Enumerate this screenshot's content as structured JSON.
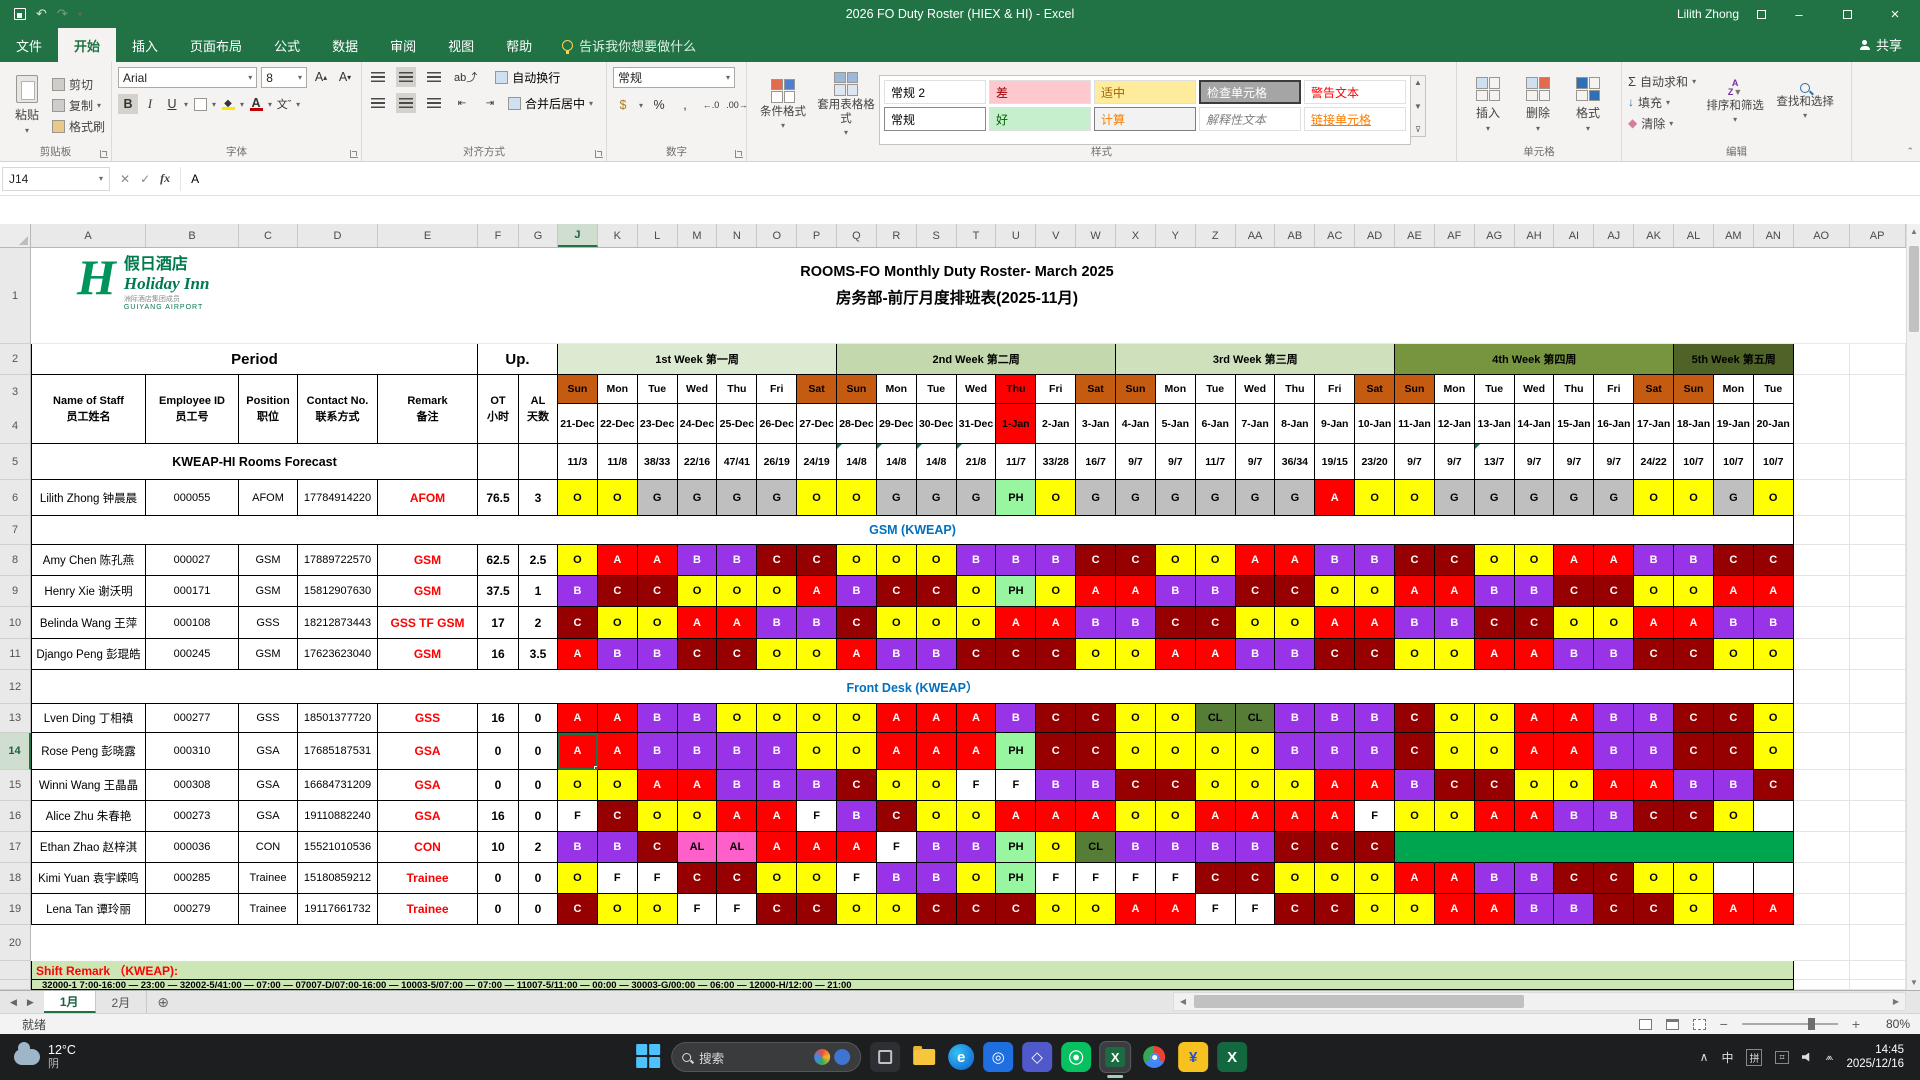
{
  "titlebar": {
    "title": "2026 FO Duty Roster (HIEX & HI)  -  Excel",
    "user": "Lilith Zhong"
  },
  "tabs": {
    "items": [
      "文件",
      "开始",
      "插入",
      "页面布局",
      "公式",
      "数据",
      "审阅",
      "视图",
      "帮助"
    ],
    "active": "开始",
    "tellme": "告诉我你想要做什么",
    "share": "共享"
  },
  "ribbon": {
    "clipboard": {
      "label": "剪贴板",
      "paste": "粘贴",
      "cut": "剪切",
      "copy": "复制",
      "painter": "格式刷"
    },
    "font": {
      "label": "字体",
      "name": "Arial",
      "size": "8"
    },
    "align": {
      "label": "对齐方式",
      "wrap": "自动换行",
      "merge": "合并后居中"
    },
    "number": {
      "label": "数字",
      "format": "常规"
    },
    "styles": {
      "label": "样式",
      "cond": "条件格式",
      "table": "套用表格格式",
      "gallery": [
        "常规 2",
        "常规",
        "差",
        "好",
        "适中",
        "计算",
        "检查单元格",
        "解释性文本",
        "警告文本",
        "链接单元格"
      ]
    },
    "cells": {
      "label": "单元格",
      "insert": "插入",
      "delete": "删除",
      "format": "格式"
    },
    "editing": {
      "label": "编辑",
      "autosum": "自动求和",
      "fill": "填充",
      "clear": "清除",
      "sort": "排序和筛选",
      "find": "查找和选择"
    }
  },
  "formula_bar": {
    "name_box": "J14",
    "content": "A"
  },
  "grid": {
    "columns": [
      "A",
      "B",
      "C",
      "D",
      "E",
      "F",
      "G",
      "J",
      "K",
      "L",
      "M",
      "N",
      "O",
      "P",
      "Q",
      "R",
      "S",
      "T",
      "U",
      "V",
      "W",
      "X",
      "Y",
      "Z",
      "AA",
      "AB",
      "AC",
      "AD",
      "AE",
      "AF",
      "AG",
      "AH",
      "AI",
      "AJ",
      "AK",
      "AL",
      "AM",
      "AN",
      "AO",
      "AP"
    ],
    "selected_column": "J",
    "selected_row": 14
  },
  "roster": {
    "title_en": "ROOMS-FO Monthly Duty Roster- March 2025",
    "title_cn": "房务部-前厅月度排班表(2025-11月)",
    "logo": {
      "cn": "假日酒店",
      "en": "Holiday Inn",
      "sub": "洲际酒店集团成员",
      "airport": "GUIYANG AIRPORT"
    },
    "period_label": "Period",
    "up_label": "Up.",
    "header": {
      "name": "Name of Staff",
      "name_cn": "员工姓名",
      "id": "Employee ID",
      "id_cn": "员工号",
      "pos": "Position",
      "pos_cn": "职位",
      "contact": "Contact No.",
      "contact_cn": "联系方式",
      "remark": "Remark",
      "remark_cn": "备注",
      "ot": "OT",
      "ot_cn": "小时",
      "al": "AL",
      "al_cn": "天数"
    },
    "forecast_label": "KWEAP-HI Rooms Forecast",
    "weeks": [
      {
        "label": "1st Week 第一周",
        "days": 7,
        "bg": "#dcead2",
        "fg": "#000000"
      },
      {
        "label": "2nd Week 第二周",
        "days": 7,
        "bg": "#c3d9ad",
        "fg": "#000000"
      },
      {
        "label": "3rd Week 第三周",
        "days": 7,
        "bg": "#cfe0bd",
        "fg": "#000000"
      },
      {
        "label": "4th Week 第四周",
        "days": 7,
        "bg": "#77943e",
        "fg": "#000000"
      },
      {
        "label": "5th Week 第五周",
        "days": 3,
        "bg": "#4f6228",
        "fg": "#000000"
      }
    ],
    "days": [
      {
        "dow": "Sun",
        "date": "21-Dec",
        "type": "weekend"
      },
      {
        "dow": "Mon",
        "date": "22-Dec",
        "type": "normal"
      },
      {
        "dow": "Tue",
        "date": "23-Dec",
        "type": "normal"
      },
      {
        "dow": "Wed",
        "date": "24-Dec",
        "type": "normal"
      },
      {
        "dow": "Thu",
        "date": "25-Dec",
        "type": "normal"
      },
      {
        "dow": "Fri",
        "date": "26-Dec",
        "type": "normal"
      },
      {
        "dow": "Sat",
        "date": "27-Dec",
        "type": "weekend"
      },
      {
        "dow": "Sun",
        "date": "28-Dec",
        "type": "weekend",
        "corner": true
      },
      {
        "dow": "Mon",
        "date": "29-Dec",
        "type": "normal",
        "corner": true
      },
      {
        "dow": "Tue",
        "date": "30-Dec",
        "type": "normal",
        "corner": true
      },
      {
        "dow": "Wed",
        "date": "31-Dec",
        "type": "normal",
        "corner": true
      },
      {
        "dow": "Thu",
        "date": "1-Jan",
        "type": "holiday"
      },
      {
        "dow": "Fri",
        "date": "2-Jan",
        "type": "normal"
      },
      {
        "dow": "Sat",
        "date": "3-Jan",
        "type": "weekend"
      },
      {
        "dow": "Sun",
        "date": "4-Jan",
        "type": "weekend"
      },
      {
        "dow": "Mon",
        "date": "5-Jan",
        "type": "normal"
      },
      {
        "dow": "Tue",
        "date": "6-Jan",
        "type": "normal"
      },
      {
        "dow": "Wed",
        "date": "7-Jan",
        "type": "normal"
      },
      {
        "dow": "Thu",
        "date": "8-Jan",
        "type": "normal"
      },
      {
        "dow": "Fri",
        "date": "9-Jan",
        "type": "normal"
      },
      {
        "dow": "Sat",
        "date": "10-Jan",
        "type": "weekend"
      },
      {
        "dow": "Sun",
        "date": "11-Jan",
        "type": "weekend"
      },
      {
        "dow": "Mon",
        "date": "12-Jan",
        "type": "normal"
      },
      {
        "dow": "Tue",
        "date": "13-Jan",
        "type": "normal",
        "corner": true
      },
      {
        "dow": "Wed",
        "date": "14-Jan",
        "type": "normal"
      },
      {
        "dow": "Thu",
        "date": "15-Jan",
        "type": "normal"
      },
      {
        "dow": "Fri",
        "date": "16-Jan",
        "type": "normal"
      },
      {
        "dow": "Sat",
        "date": "17-Jan",
        "type": "weekend"
      },
      {
        "dow": "Sun",
        "date": "18-Jan",
        "type": "weekend"
      },
      {
        "dow": "Mon",
        "date": "19-Jan",
        "type": "normal"
      },
      {
        "dow": "Tue",
        "date": "20-Jan",
        "type": "normal"
      }
    ],
    "forecast": [
      "11/3",
      "11/8",
      "38/33",
      "22/16",
      "47/41",
      "26/19",
      "24/19",
      "14/8",
      "14/8",
      "14/8",
      "21/8",
      "11/7",
      "33/28",
      "16/7",
      "9/7",
      "9/7",
      "11/7",
      "9/7",
      "36/34",
      "19/15",
      "23/20",
      "9/7",
      "9/7",
      "13/7",
      "9/7",
      "9/7",
      "9/7",
      "24/22",
      "10/7",
      "10/7",
      "10/7"
    ],
    "sections": {
      "gsm": "GSM (KWEAP)",
      "fd": "Front Desk (KWEAP）"
    },
    "shift_remark": "Shift Remark （KWEAP):",
    "shift_codes": "32000-1 7:00-16:00 — 23:00 — 32002-5/41:00 — 07:00 — 07007-D/07:00-16:00 — 10003-5/07:00 — 07:00 — 11007-5/11:00 — 00:00 — 30003-G/00:00 — 06:00 — 12000-H/12:00 — 21:00",
    "employees": [
      {
        "name": "Lilith Zhong 钟晨晨",
        "id": "000055",
        "pos": "AFOM",
        "contact": "17784914220",
        "remark": "AFOM",
        "ot": "76.5",
        "al": "3",
        "shifts": [
          "O",
          "O",
          "G",
          "G",
          "G",
          "G",
          "O",
          "O",
          "G",
          "G",
          "G",
          "PH",
          "O",
          "G",
          "G",
          "G",
          "G",
          "G",
          "G",
          "A",
          "O",
          "O",
          "G",
          "G",
          "G",
          "G",
          "G",
          "O",
          "O",
          "G",
          "O"
        ]
      },
      {
        "name": "Amy Chen 陈孔燕",
        "id": "000027",
        "pos": "GSM",
        "contact": "17889722570",
        "remark": "GSM",
        "ot": "62.5",
        "al": "2.5",
        "shifts": [
          "O",
          "A",
          "A",
          "B",
          "B",
          "C",
          "C",
          "O",
          "O",
          "O",
          "B",
          "B",
          "B",
          "C",
          "C",
          "O",
          "O",
          "A",
          "A",
          "B",
          "B",
          "C",
          "C",
          "O",
          "O",
          "A",
          "A",
          "B",
          "B",
          "C",
          "C"
        ]
      },
      {
        "name": "Henry Xie 谢沃明",
        "id": "000171",
        "pos": "GSM",
        "contact": "15812907630",
        "remark": "GSM",
        "ot": "37.5",
        "al": "1",
        "shifts": [
          "B",
          "C",
          "C",
          "O",
          "O",
          "O",
          "A",
          "B",
          "C",
          "C",
          "O",
          "PH",
          "O",
          "A",
          "A",
          "B",
          "B",
          "C",
          "C",
          "O",
          "O",
          "A",
          "A",
          "B",
          "B",
          "C",
          "C",
          "O",
          "O",
          "A",
          "A"
        ]
      },
      {
        "name": "Belinda Wang 王萍",
        "id": "000108",
        "pos": "GSS",
        "contact": "18212873443",
        "remark": "GSS TF GSM",
        "ot": "17",
        "al": "2",
        "shifts": [
          "C",
          "O",
          "O",
          "A",
          "A",
          "B",
          "B",
          "C",
          "O",
          "O",
          "O",
          "A",
          "A",
          "B",
          "B",
          "C",
          "C",
          "O",
          "O",
          "A",
          "A",
          "B",
          "B",
          "C",
          "C",
          "O",
          "O",
          "A",
          "A",
          "B",
          "B"
        ]
      },
      {
        "name": "Django Peng 彭琨皓",
        "id": "000245",
        "pos": "GSM",
        "contact": "17623623040",
        "remark": "GSM",
        "ot": "16",
        "al": "3.5",
        "shifts": [
          "A",
          "B",
          "B",
          "C",
          "C",
          "O",
          "O",
          "A",
          "B",
          "B",
          "C",
          "C",
          "C",
          "O",
          "O",
          "A",
          "A",
          "B",
          "B",
          "C",
          "C",
          "O",
          "O",
          "A",
          "A",
          "B",
          "B",
          "C",
          "C",
          "O",
          "O"
        ]
      },
      {
        "name": "Lven Ding 丁相禛",
        "id": "000277",
        "pos": "GSS",
        "contact": "18501377720",
        "remark": "GSS",
        "ot": "16",
        "al": "0",
        "shifts": [
          "A",
          "A",
          "B",
          "B",
          "O",
          "O",
          "O",
          "O",
          "A",
          "A",
          "A",
          "B",
          "C",
          "C",
          "O",
          "O",
          "CL",
          "CL",
          "B",
          "B",
          "B",
          "C",
          "O",
          "O",
          "A",
          "A",
          "B",
          "B",
          "C",
          "C",
          "O"
        ]
      },
      {
        "name": "Rose Peng 彭晓露",
        "id": "000310",
        "pos": "GSA",
        "contact": "17685187531",
        "remark": "GSA",
        "ot": "0",
        "al": "0",
        "sel": true,
        "shifts": [
          "A",
          "A",
          "B",
          "B",
          "B",
          "B",
          "O",
          "O",
          "A",
          "A",
          "A",
          "PH",
          "C",
          "C",
          "O",
          "O",
          "O",
          "O",
          "B",
          "B",
          "B",
          "C",
          "O",
          "O",
          "A",
          "A",
          "B",
          "B",
          "C",
          "C",
          "O"
        ]
      },
      {
        "name": "Winni Wang 王晶晶",
        "id": "000308",
        "pos": "GSA",
        "contact": "16684731209",
        "remark": "GSA",
        "ot": "0",
        "al": "0",
        "shifts": [
          "O",
          "O",
          "A",
          "A",
          "B",
          "B",
          "B",
          "C",
          "O",
          "O",
          "F",
          "F",
          "B",
          "B",
          "C",
          "C",
          "O",
          "O",
          "O",
          "A",
          "A",
          "B",
          "C",
          "C",
          "O",
          "O",
          "A",
          "A",
          "B",
          "B",
          "C"
        ]
      },
      {
        "name": "Alice Zhu 朱春艳",
        "id": "000273",
        "pos": "GSA",
        "contact": "19110882240",
        "remark": "GSA",
        "ot": "16",
        "al": "0",
        "shifts": [
          "F",
          "C",
          "O",
          "O",
          "A",
          "A",
          "F",
          "B",
          "C",
          "O",
          "O",
          "A",
          "A",
          "A",
          "O",
          "O",
          "A",
          "A",
          "A",
          "A",
          "F",
          "O",
          "O",
          "A",
          "A",
          "B",
          "B",
          "C",
          "C",
          "O",
          ""
        ]
      },
      {
        "name": "Ethan Zhao 赵梓淇",
        "id": "000036",
        "pos": "CON",
        "contact": "15521010536",
        "remark": "CON",
        "ot": "10",
        "al": "2",
        "shifts": [
          "B",
          "B",
          "C",
          "AL",
          "AL",
          "A",
          "A",
          "A",
          "F",
          "B",
          "B",
          "PH",
          "O",
          "CL",
          "B",
          "B",
          "B",
          "B",
          "C",
          "C",
          "C",
          "GN",
          "GN",
          "GN",
          "GN",
          "GN",
          "GN",
          "GN",
          "GN",
          "GN",
          "GN"
        ]
      },
      {
        "name": "Kimi Yuan 袁宇嵘鸣",
        "id": "000285",
        "pos": "Trainee",
        "contact": "15180859212",
        "remark": "Trainee",
        "ot": "0",
        "al": "0",
        "shifts": [
          "O",
          "F",
          "F",
          "C",
          "C",
          "O",
          "O",
          "F",
          "B",
          "B",
          "O",
          "PH",
          "F",
          "F",
          "F",
          "F",
          "C",
          "C",
          "O",
          "O",
          "O",
          "A",
          "A",
          "B",
          "B",
          "C",
          "C",
          "O",
          "O",
          "",
          ""
        ]
      },
      {
        "name": "Lena Tan 谭玲丽",
        "id": "000279",
        "pos": "Trainee",
        "contact": "19117661732",
        "remark": "Trainee",
        "ot": "0",
        "al": "0",
        "shifts": [
          "C",
          "O",
          "O",
          "F",
          "F",
          "C",
          "C",
          "O",
          "O",
          "C",
          "C",
          "C",
          "O",
          "O",
          "A",
          "A",
          "F",
          "F",
          "C",
          "C",
          "O",
          "O",
          "A",
          "A",
          "B",
          "B",
          "C",
          "C",
          "O",
          "A",
          "A"
        ]
      }
    ],
    "shift_colors": {
      "O": [
        "#ffff00",
        "#000000"
      ],
      "A": [
        "#ff0000",
        "#ffffff"
      ],
      "B": [
        "#9933e8",
        "#ffffff"
      ],
      "C": [
        "#970000",
        "#ffffff"
      ],
      "G": [
        "#bfbfbf",
        "#000000"
      ],
      "PH": [
        "#98f5a0",
        "#000000"
      ],
      "F": [
        "#ffffff",
        "#000000"
      ],
      "AL": [
        "#ff5fc8",
        "#000000"
      ],
      "CL": [
        "#567d36",
        "#000000"
      ],
      "GN": [
        "#00a550",
        "#00a550"
      ],
      "": [
        "#ffffff",
        "#000000"
      ]
    },
    "colors": {
      "weekend_bg": "#c55a11",
      "holiday_bg": "#ff0000",
      "section_fg": "#0070c0",
      "remark_bg": "#cde6b5",
      "remark_fg": "#ff0000"
    }
  },
  "sheet_tabs": {
    "items": [
      "1月",
      "2月"
    ],
    "active": "1月"
  },
  "status_bar": {
    "ready": "就绪",
    "zoom": "80%"
  },
  "taskbar": {
    "weather_temp": "12°C",
    "weather_cond": "阴",
    "search": "搜索",
    "time": "14:45",
    "date": "2025/12/16"
  }
}
